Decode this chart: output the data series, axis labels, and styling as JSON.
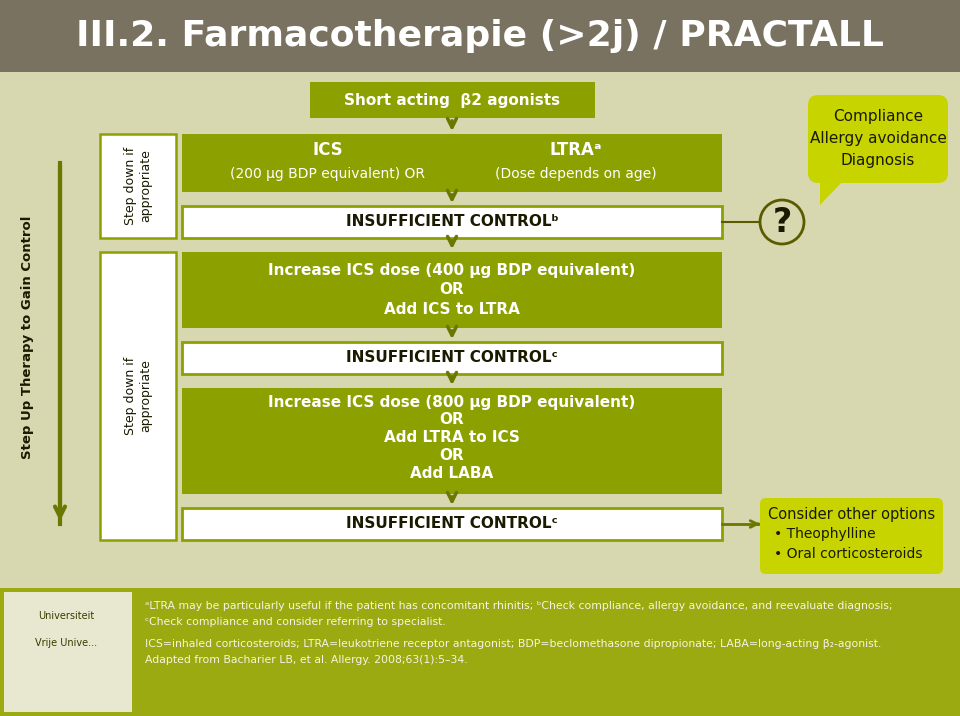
{
  "title": "III.2. Farmacotherapie (>2j) / PRACTALL",
  "title_bg": "#7a7260",
  "title_color": "#ffffff",
  "main_bg": "#d8d8b0",
  "olive_green": "#8ca000",
  "olive_light": "#c8d400",
  "white": "#ffffff",
  "arrow_color": "#6a7800",
  "short_acting": "Short acting  β2 agonists",
  "ics_line1": "ICS",
  "ics_line2": "(200 μg BDP equivalent) OR",
  "ltra_line1": "LTRAᵃ",
  "ltra_line2": "(Dose depends on age)",
  "insuf_b": "INSUFFICIENT CONTROLᵇ",
  "inc1_line1": "Increase ICS dose (400 μg BDP equivalent)",
  "inc1_line2": "OR",
  "inc1_line3": "Add ICS to LTRA",
  "insuf_c1": "INSUFFICIENT CONTROLᶜ",
  "inc2_line1": "Increase ICS dose (800 μg BDP equivalent)",
  "inc2_line2": "OR",
  "inc2_line3": "Add LTRA to ICS",
  "inc2_line4": "OR",
  "inc2_line5": "Add LABA",
  "insuf_c2": "INSUFFICIENT CONTROLᶜ",
  "step_up_text": "Step Up Therapy to Gain Control",
  "step_down_text": "Step down if\nappropriate",
  "question_mark": "?",
  "compliance_line1": "Compliance",
  "compliance_line2": "Allergy avoidance",
  "compliance_line3": "Diagnosis",
  "compliance_bg": "#c8d400",
  "consider_title": "Consider other options",
  "consider_item1": "• Theophylline",
  "consider_item2": "• Oral corticosteroids",
  "consider_bg": "#c8d400",
  "footnote_bg": "#9aaa10",
  "fn1": "ᵃLTRA may be particularly useful if the patient has concomitant rhinitis; ᵇCheck compliance, allergy avoidance, and reevaluate diagnosis;",
  "fn2": "ᶜCheck compliance and consider referring to specialist.",
  "fn3": "ICS=inhaled corticosteroids; LTRA=leukotriene receptor antagonist; BDP=beclomethasone dipropionate; LABA=long-acting β₂-agonist.",
  "fn4": "Adapted from Bacharier LB, et al. Allergy. 2008;63(1):5–34."
}
